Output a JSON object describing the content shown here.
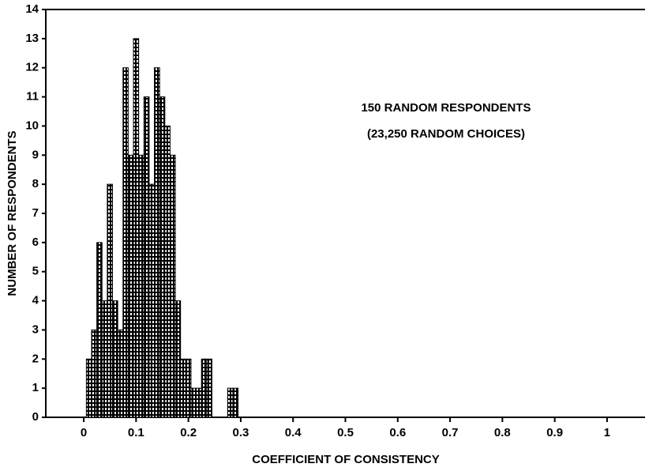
{
  "chart_data": {
    "type": "histogram",
    "x_label": "COEFFICIENT OF CONSISTENCY",
    "y_label": "NUMBER OF RESPONDENTS",
    "annotations": [
      "150 RANDOM RESPONDENTS",
      "(23,250 RANDOM CHOICES)"
    ],
    "bins": [
      0.005,
      0.015,
      0.025,
      0.035,
      0.045,
      0.055,
      0.065,
      0.075,
      0.085,
      0.095,
      0.105,
      0.115,
      0.125,
      0.135,
      0.145,
      0.155,
      0.165,
      0.175,
      0.185,
      0.195,
      0.205,
      0.215,
      0.225,
      0.235,
      0.245,
      0.255,
      0.265,
      0.275,
      0.285,
      0.295
    ],
    "values": [
      2,
      3,
      6,
      4,
      8,
      4,
      3,
      12,
      9,
      13,
      9,
      11,
      8,
      12,
      11,
      10,
      9,
      4,
      2,
      2,
      1,
      1,
      2,
      2,
      0,
      0,
      0,
      1,
      1
    ],
    "color": "#000000",
    "xlim": [
      -0.0725,
      1.0725
    ],
    "xticks": [
      0,
      0.1,
      0.2,
      0.3,
      0.4,
      0.5,
      0.6,
      0.7,
      0.8,
      0.9,
      1
    ],
    "ylim": [
      0,
      14
    ],
    "yticks": [
      0,
      1,
      2,
      3,
      4,
      5,
      6,
      7,
      8,
      9,
      10,
      11,
      12,
      13,
      14
    ]
  }
}
